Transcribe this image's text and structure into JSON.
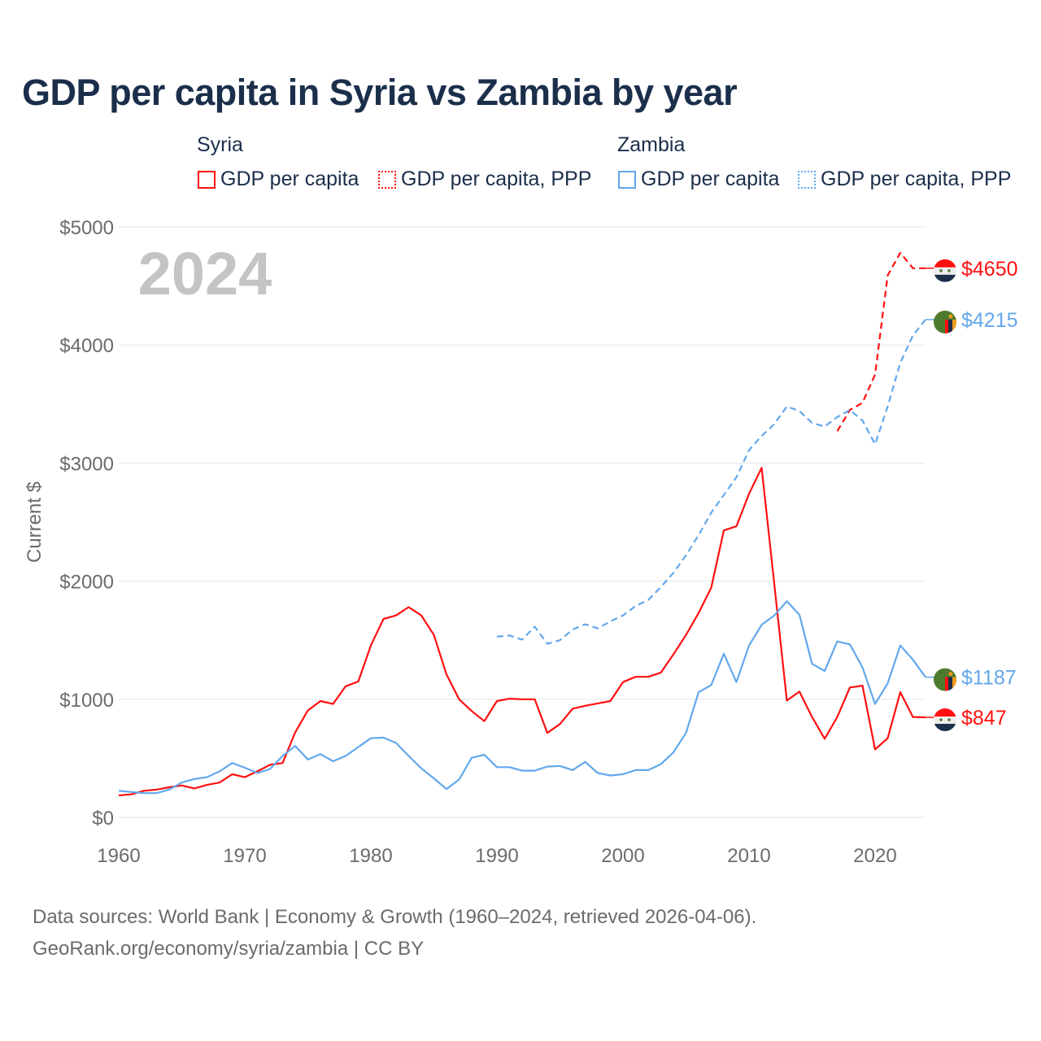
{
  "title": "GDP per capita in Syria vs Zambia by year",
  "legend": {
    "groups": [
      {
        "label": "Syria",
        "items": [
          "GDP per capita",
          "GDP per capita, PPP"
        ],
        "color": "#ff1010"
      },
      {
        "label": "Zambia",
        "items": [
          "GDP per capita",
          "GDP per capita, PPP"
        ],
        "color": "#62a8ec"
      }
    ]
  },
  "source_line1": "Data sources: World Bank | Economy & Growth (1960–2024, retrieved 2026-04-06).",
  "source_line2": "GeoRank.org/economy/syria/zambia | CC BY",
  "chart_data": {
    "type": "line",
    "title": "GDP per capita in Syria vs Zambia by year",
    "year_overlay": "2024",
    "ylabel": "Current $",
    "xlabel": "",
    "xlim": [
      1960,
      2024
    ],
    "ylim": [
      0,
      5000
    ],
    "yticks": [
      0,
      1000,
      2000,
      3000,
      4000,
      5000
    ],
    "ytick_labels": [
      "$0",
      "$1000",
      "$2000",
      "$3000",
      "$4000",
      "$5000"
    ],
    "xticks": [
      1960,
      1970,
      1980,
      1990,
      2000,
      2010,
      2020
    ],
    "xtick_labels": [
      "1960",
      "1970",
      "1980",
      "1990",
      "2000",
      "2010",
      "2020"
    ],
    "grid": true,
    "legend_position": "top",
    "series": [
      {
        "name": "Syria GDP per capita",
        "country": "Syria",
        "color": "#ff1010",
        "dashed": false,
        "start": 1960,
        "end_label": "$847",
        "values": [
          186,
          195,
          225,
          235,
          255,
          270,
          245,
          275,
          295,
          365,
          340,
          390,
          445,
          460,
          720,
          905,
          985,
          960,
          1110,
          1150,
          1455,
          1680,
          1710,
          1780,
          1710,
          1545,
          1210,
          1000,
          900,
          815,
          985,
          1005,
          1000,
          1000,
          715,
          790,
          920,
          945,
          965,
          985,
          1145,
          1190,
          1190,
          1225,
          1380,
          1545,
          1730,
          1945,
          2430,
          2465,
          2740,
          2960,
          1980,
          990,
          1065,
          850,
          665,
          850,
          1100,
          1115,
          575,
          670,
          1060,
          850,
          847
        ]
      },
      {
        "name": "Syria GDP per capita, PPP",
        "country": "Syria",
        "color": "#ff1010",
        "dashed": true,
        "start": 2017,
        "end_label": "$4650",
        "values": [
          3270,
          3450,
          3510,
          3750,
          4590,
          4780,
          4650,
          4650
        ]
      },
      {
        "name": "Zambia GDP per capita",
        "country": "Zambia",
        "color": "#62a8ec",
        "dashed": false,
        "start": 1960,
        "end_label": "$1187",
        "values": [
          225,
          215,
          205,
          205,
          235,
          295,
          325,
          340,
          390,
          460,
          420,
          375,
          410,
          520,
          605,
          490,
          535,
          475,
          520,
          595,
          670,
          675,
          630,
          520,
          415,
          330,
          240,
          320,
          505,
          530,
          425,
          425,
          395,
          395,
          430,
          435,
          400,
          470,
          375,
          355,
          365,
          400,
          400,
          450,
          550,
          715,
          1060,
          1120,
          1385,
          1145,
          1455,
          1630,
          1710,
          1830,
          1715,
          1300,
          1240,
          1490,
          1465,
          1270,
          960,
          1135,
          1455,
          1335,
          1187
        ]
      },
      {
        "name": "Zambia GDP per capita, PPP",
        "country": "Zambia",
        "color": "#62a8ec",
        "dashed": true,
        "start": 1990,
        "end_label": "$4215",
        "values": [
          1530,
          1540,
          1505,
          1615,
          1470,
          1500,
          1590,
          1635,
          1600,
          1660,
          1710,
          1790,
          1840,
          1950,
          2070,
          2220,
          2390,
          2580,
          2730,
          2880,
          3110,
          3230,
          3330,
          3480,
          3440,
          3340,
          3310,
          3390,
          3450,
          3360,
          3160,
          3480,
          3850,
          4080,
          4215
        ]
      }
    ]
  }
}
